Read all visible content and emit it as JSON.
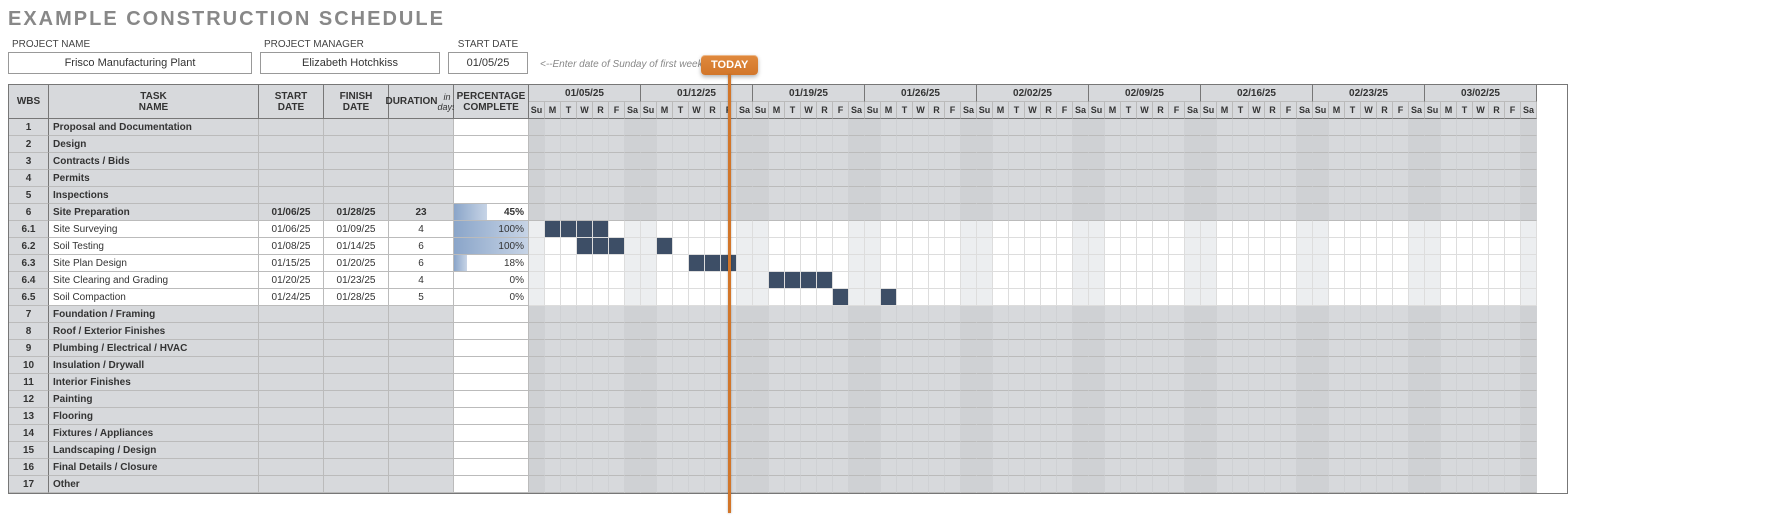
{
  "title": "EXAMPLE CONSTRUCTION SCHEDULE",
  "fields": {
    "project_name_label": "PROJECT NAME",
    "project_name": "Frisco Manufacturing Plant",
    "project_manager_label": "PROJECT MANAGER",
    "project_manager": "Elizabeth Hotchkiss",
    "start_date_label": "START DATE",
    "start_date": "01/05/25",
    "hint": "<--Enter date of Sunday of first week."
  },
  "columns": {
    "wbs": "WBS",
    "task": "TASK NAME",
    "start": "START DATE",
    "finish": "FINISH DATE",
    "duration": "DURATION",
    "duration_sub": "in days",
    "pct": "PERCENTAGE COMPLETE"
  },
  "today_label": "TODAY",
  "today_index": 12,
  "day_cell_w": 16,
  "weekend_day_indices": [
    0,
    6
  ],
  "day_labels": [
    "Su",
    "M",
    "T",
    "W",
    "R",
    "F",
    "Sa"
  ],
  "weeks": [
    "01/05/25",
    "01/12/25",
    "01/19/25",
    "01/26/25",
    "02/02/25",
    "02/09/25",
    "02/16/25",
    "02/23/25",
    "03/02/25"
  ],
  "bar_color": "#3d4e66",
  "rows": [
    {
      "wbs": "1",
      "name": "Proposal and Documentation",
      "phase": true
    },
    {
      "wbs": "2",
      "name": "Design",
      "phase": true
    },
    {
      "wbs": "3",
      "name": "Contracts / Bids",
      "phase": true
    },
    {
      "wbs": "4",
      "name": "Permits",
      "phase": true
    },
    {
      "wbs": "5",
      "name": "Inspections",
      "phase": true
    },
    {
      "wbs": "6",
      "name": "Site Preparation",
      "phase": true,
      "start": "01/06/25",
      "finish": "01/28/25",
      "dur": "23",
      "pct": 45
    },
    {
      "wbs": "6.1",
      "name": "Site Surveying",
      "start": "01/06/25",
      "finish": "01/09/25",
      "dur": "4",
      "pct": 100,
      "bar_start": 1,
      "bar_len": 4
    },
    {
      "wbs": "6.2",
      "name": "Soil Testing",
      "start": "01/08/25",
      "finish": "01/14/25",
      "dur": "6",
      "pct": 100,
      "bar_start": 3,
      "bar_len": 6
    },
    {
      "wbs": "6.3",
      "name": "Site Plan Design",
      "start": "01/15/25",
      "finish": "01/20/25",
      "dur": "6",
      "pct": 18,
      "bar_start": 10,
      "bar_len": 5
    },
    {
      "wbs": "6.4",
      "name": "Site Clearing and Grading",
      "start": "01/20/25",
      "finish": "01/23/25",
      "dur": "4",
      "pct": 0,
      "bar_start": 15,
      "bar_len": 4
    },
    {
      "wbs": "6.5",
      "name": "Soil Compaction",
      "start": "01/24/25",
      "finish": "01/28/25",
      "dur": "5",
      "pct": 0,
      "bar_start": 19,
      "bar_len": 4
    },
    {
      "wbs": "7",
      "name": "Foundation / Framing",
      "phase": true
    },
    {
      "wbs": "8",
      "name": "Roof / Exterior Finishes",
      "phase": true
    },
    {
      "wbs": "9",
      "name": "Plumbing / Electrical / HVAC",
      "phase": true
    },
    {
      "wbs": "10",
      "name": "Insulation / Drywall",
      "phase": true
    },
    {
      "wbs": "11",
      "name": "Interior Finishes",
      "phase": true
    },
    {
      "wbs": "12",
      "name": "Painting",
      "phase": true
    },
    {
      "wbs": "13",
      "name": "Flooring",
      "phase": true
    },
    {
      "wbs": "14",
      "name": "Fixtures / Appliances",
      "phase": true
    },
    {
      "wbs": "15",
      "name": "Landscaping / Design",
      "phase": true
    },
    {
      "wbs": "16",
      "name": "Final Details / Closure",
      "phase": true
    },
    {
      "wbs": "17",
      "name": "Other",
      "phase": true
    }
  ]
}
